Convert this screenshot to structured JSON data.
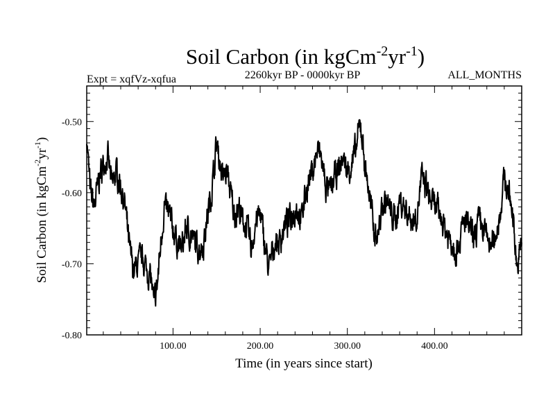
{
  "chart_data": {
    "type": "line",
    "title_main": "Soil Carbon (in kgCm",
    "title_exp1": "-2",
    "title_mid": "yr",
    "title_exp2": "-1",
    "title_close": ")",
    "subtitle_left": "Expt = xqfVz-xqfua",
    "subtitle_center": "2260kyr BP - 0000kyr BP",
    "subtitle_right": "ALL_MONTHS",
    "xlabel": "Time (in years since start)",
    "ylabel_main": "Soil Carbon (in kgCm",
    "ylabel_exp1": "-2",
    "ylabel_mid": "yr",
    "ylabel_exp2": "-1",
    "ylabel_close": ")",
    "xlim": [
      1,
      500
    ],
    "ylim": [
      -0.8,
      -0.45
    ],
    "x_ticks": [
      {
        "value": 100,
        "label": "100.00"
      },
      {
        "value": 200,
        "label": "200.00"
      },
      {
        "value": 300,
        "label": "300.00"
      },
      {
        "value": 400,
        "label": "400.00"
      }
    ],
    "y_ticks": [
      {
        "value": -0.5,
        "label": "-0.50"
      },
      {
        "value": -0.6,
        "label": "-0.60"
      },
      {
        "value": -0.7,
        "label": "-0.70"
      },
      {
        "value": -0.8,
        "label": "-0.80"
      }
    ],
    "series": [
      {
        "name": "Soil Carbon",
        "color": "#000000",
        "x": [
          1,
          5,
          10,
          15,
          20,
          25,
          30,
          35,
          40,
          45,
          50,
          55,
          60,
          65,
          70,
          75,
          78,
          82,
          86,
          90,
          95,
          100,
          105,
          110,
          115,
          120,
          125,
          130,
          135,
          140,
          145,
          150,
          153,
          157,
          162,
          166,
          170,
          175,
          180,
          185,
          190,
          195,
          200,
          205,
          210,
          213,
          217,
          222,
          227,
          232,
          237,
          242,
          247,
          252,
          257,
          262,
          266,
          270,
          275,
          280,
          285,
          290,
          295,
          300,
          305,
          310,
          315,
          320,
          325,
          330,
          335,
          340,
          345,
          350,
          355,
          360,
          365,
          370,
          375,
          380,
          385,
          390,
          395,
          400,
          405,
          410,
          415,
          420,
          425,
          430,
          435,
          440,
          445,
          450,
          455,
          460,
          465,
          470,
          475,
          480,
          485,
          490,
          495,
          500
        ],
        "values": [
          -0.52,
          -0.6,
          -0.62,
          -0.58,
          -0.56,
          -0.55,
          -0.59,
          -0.57,
          -0.59,
          -0.62,
          -0.68,
          -0.71,
          -0.7,
          -0.69,
          -0.71,
          -0.72,
          -0.76,
          -0.73,
          -0.67,
          -0.62,
          -0.63,
          -0.65,
          -0.67,
          -0.68,
          -0.65,
          -0.66,
          -0.67,
          -0.68,
          -0.67,
          -0.63,
          -0.59,
          -0.53,
          -0.55,
          -0.58,
          -0.57,
          -0.6,
          -0.63,
          -0.62,
          -0.64,
          -0.65,
          -0.68,
          -0.64,
          -0.63,
          -0.67,
          -0.71,
          -0.69,
          -0.67,
          -0.67,
          -0.65,
          -0.64,
          -0.63,
          -0.62,
          -0.64,
          -0.6,
          -0.58,
          -0.56,
          -0.54,
          -0.55,
          -0.59,
          -0.6,
          -0.58,
          -0.57,
          -0.55,
          -0.57,
          -0.56,
          -0.54,
          -0.5,
          -0.56,
          -0.6,
          -0.65,
          -0.66,
          -0.62,
          -0.61,
          -0.63,
          -0.64,
          -0.61,
          -0.62,
          -0.63,
          -0.64,
          -0.63,
          -0.58,
          -0.59,
          -0.61,
          -0.62,
          -0.63,
          -0.64,
          -0.66,
          -0.67,
          -0.68,
          -0.66,
          -0.64,
          -0.65,
          -0.67,
          -0.64,
          -0.65,
          -0.66,
          -0.68,
          -0.66,
          -0.63,
          -0.58,
          -0.6,
          -0.63,
          -0.71,
          -0.67
        ]
      }
    ]
  }
}
